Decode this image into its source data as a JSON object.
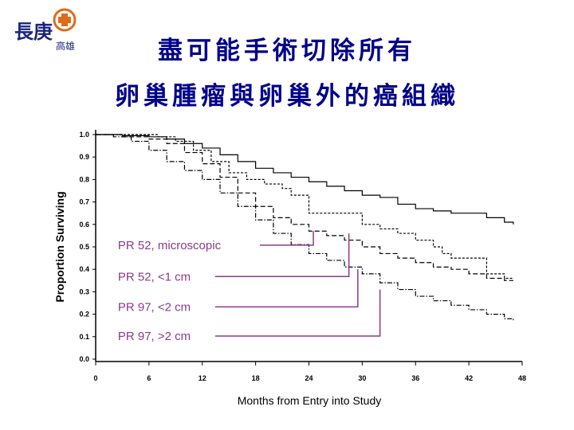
{
  "logo": {
    "name": "長庚",
    "sub": "高雄"
  },
  "title_lines": [
    "盡可能手術切除所有",
    "卵巢腫瘤與卵巢外的癌組織"
  ],
  "colors": {
    "title": "#00008b",
    "callout": "#8b3a8b",
    "ink": "#000000",
    "logo_orange": "#e06a1c"
  },
  "chart_data": {
    "type": "line",
    "title": "",
    "xlabel": "Months from Entry into Study",
    "ylabel": "Proportion Surviving",
    "xlim": [
      0,
      48
    ],
    "ylim": [
      0,
      1
    ],
    "x_ticks": [
      0,
      6,
      12,
      18,
      24,
      30,
      36,
      42,
      48
    ],
    "x_tick_labels": [
      "0",
      "6",
      "12",
      "18",
      "24",
      "30",
      "36",
      "42",
      "48"
    ],
    "y_ticks": [
      0,
      0.1,
      0.2,
      0.3,
      0.4,
      0.5,
      0.6,
      0.7,
      0.8,
      0.9,
      1.0
    ],
    "y_tick_labels": [
      "0.0",
      "0.1",
      "0.2",
      "0.3",
      "0.4",
      "0.5",
      "0.6",
      "0.7",
      "0.8",
      "0.9",
      "1.0"
    ],
    "series": [
      {
        "name": "PR 52, microscopic",
        "style": "solid",
        "points": [
          [
            0,
            1.0
          ],
          [
            3,
            0.995
          ],
          [
            6,
            0.99
          ],
          [
            8,
            0.98
          ],
          [
            10,
            0.96
          ],
          [
            12,
            0.94
          ],
          [
            14,
            0.91
          ],
          [
            16,
            0.88
          ],
          [
            18,
            0.85
          ],
          [
            20,
            0.83
          ],
          [
            22,
            0.81
          ],
          [
            24,
            0.79
          ],
          [
            26,
            0.77
          ],
          [
            28,
            0.75
          ],
          [
            30,
            0.73
          ],
          [
            32,
            0.72
          ],
          [
            34,
            0.69
          ],
          [
            36,
            0.67
          ],
          [
            38,
            0.66
          ],
          [
            40,
            0.65
          ],
          [
            42,
            0.65
          ],
          [
            44,
            0.63
          ],
          [
            46,
            0.61
          ],
          [
            47,
            0.6
          ]
        ],
        "callout": {
          "label_y": 0.49,
          "x": 24.5,
          "y": 0.57
        }
      },
      {
        "name": "PR 52, <1 cm",
        "style": "dashed-fine",
        "points": [
          [
            0,
            1.0
          ],
          [
            4,
            1.0
          ],
          [
            7,
            0.99
          ],
          [
            9,
            0.97
          ],
          [
            11,
            0.93
          ],
          [
            13,
            0.88
          ],
          [
            15,
            0.83
          ],
          [
            17,
            0.8
          ],
          [
            19,
            0.78
          ],
          [
            21,
            0.76
          ],
          [
            22,
            0.73
          ],
          [
            23,
            0.73
          ],
          [
            24,
            0.65
          ],
          [
            28,
            0.65
          ],
          [
            30,
            0.6
          ],
          [
            32,
            0.58
          ],
          [
            34,
            0.56
          ],
          [
            36,
            0.53
          ],
          [
            38,
            0.5
          ],
          [
            39,
            0.47
          ],
          [
            40,
            0.45
          ],
          [
            42,
            0.45
          ],
          [
            44,
            0.38
          ],
          [
            46,
            0.36
          ],
          [
            47,
            0.36
          ]
        ],
        "callout": {
          "label_y": 0.35,
          "x": 28.5,
          "y": 0.56
        }
      },
      {
        "name": "PR 97, <2 cm",
        "style": "dashed",
        "points": [
          [
            0,
            1.0
          ],
          [
            3,
            0.99
          ],
          [
            6,
            0.98
          ],
          [
            8,
            0.96
          ],
          [
            10,
            0.92
          ],
          [
            12,
            0.87
          ],
          [
            14,
            0.81
          ],
          [
            16,
            0.74
          ],
          [
            18,
            0.68
          ],
          [
            20,
            0.63
          ],
          [
            22,
            0.6
          ],
          [
            24,
            0.57
          ],
          [
            26,
            0.55
          ],
          [
            28,
            0.53
          ],
          [
            30,
            0.5
          ],
          [
            32,
            0.47
          ],
          [
            34,
            0.45
          ],
          [
            36,
            0.43
          ],
          [
            38,
            0.41
          ],
          [
            40,
            0.4
          ],
          [
            42,
            0.38
          ],
          [
            44,
            0.36
          ],
          [
            46,
            0.35
          ],
          [
            47,
            0.35
          ]
        ],
        "callout": {
          "label_y": 0.215,
          "x": 29.5,
          "y": 0.4
        }
      },
      {
        "name": "PR 97, >2 cm",
        "style": "dash-dot",
        "points": [
          [
            0,
            1.0
          ],
          [
            2,
            0.99
          ],
          [
            4,
            0.97
          ],
          [
            6,
            0.93
          ],
          [
            8,
            0.88
          ],
          [
            10,
            0.84
          ],
          [
            12,
            0.8
          ],
          [
            14,
            0.74
          ],
          [
            16,
            0.68
          ],
          [
            18,
            0.62
          ],
          [
            20,
            0.56
          ],
          [
            22,
            0.51
          ],
          [
            24,
            0.47
          ],
          [
            26,
            0.44
          ],
          [
            28,
            0.41
          ],
          [
            30,
            0.38
          ],
          [
            32,
            0.34
          ],
          [
            34,
            0.31
          ],
          [
            36,
            0.28
          ],
          [
            38,
            0.26
          ],
          [
            40,
            0.24
          ],
          [
            42,
            0.22
          ],
          [
            44,
            0.2
          ],
          [
            46,
            0.18
          ],
          [
            47,
            0.17
          ]
        ],
        "callout": {
          "label_y": 0.085,
          "x": 32,
          "y": 0.31
        }
      }
    ]
  }
}
